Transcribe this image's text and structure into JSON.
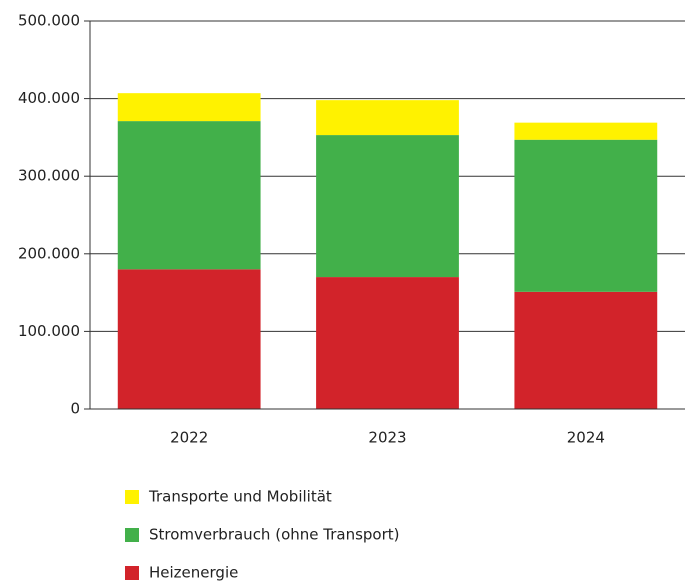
{
  "chart_data": {
    "type": "stacked_bar",
    "categories": [
      "2022",
      "2023",
      "2024"
    ],
    "series": [
      {
        "name": "Heizenergie",
        "color": "#d2232a",
        "values": [
          180000,
          170000,
          151000
        ]
      },
      {
        "name": "Stromverbrauch (ohne Transport)",
        "color": "#42b04a",
        "values": [
          191000,
          183000,
          196000
        ]
      },
      {
        "name": "Transporte und Mobilität",
        "color": "#fff200",
        "values": [
          36000,
          45000,
          22000
        ]
      }
    ],
    "ylim": [
      0,
      500000
    ],
    "yticks": [
      0,
      {
        "value": 100000,
        "label": "100.000"
      },
      {
        "value": 200000,
        "label": "200.000"
      },
      {
        "value": 300000,
        "label": "300.000"
      },
      {
        "value": 400000,
        "label": "400.000"
      },
      {
        "value": 500000,
        "label": "500.000"
      }
    ],
    "grid": true
  }
}
